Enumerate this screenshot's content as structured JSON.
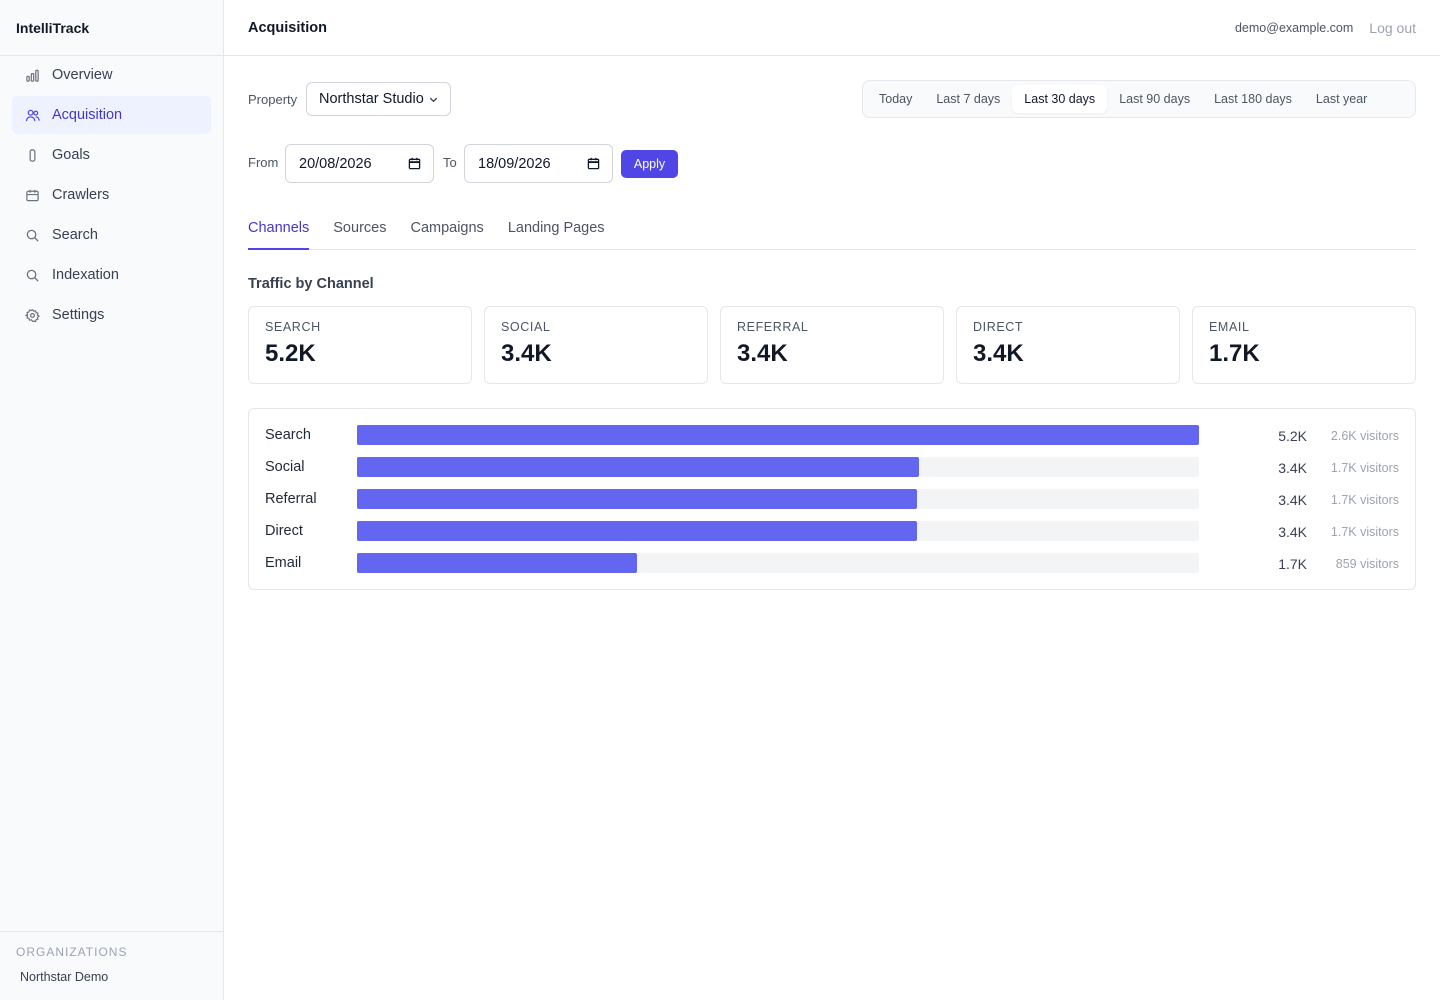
{
  "app": {
    "name": "IntelliTrack"
  },
  "sidebar": {
    "items": [
      {
        "label": "Overview",
        "icon": "bar-chart-icon"
      },
      {
        "label": "Acquisition",
        "icon": "users-icon",
        "active": true
      },
      {
        "label": "Goals",
        "icon": "goal-icon"
      },
      {
        "label": "Crawlers",
        "icon": "calendar-icon"
      },
      {
        "label": "Search",
        "icon": "search-icon"
      },
      {
        "label": "Indexation",
        "icon": "search-icon"
      },
      {
        "label": "Settings",
        "icon": "gear-icon"
      }
    ],
    "org_label": "ORGANIZATIONS",
    "org_name": "Northstar Demo"
  },
  "header": {
    "title": "Acquisition",
    "user_email": "demo@example.com",
    "logout_label": "Log out"
  },
  "filters": {
    "property_label": "Property",
    "property_value": "Northstar Studio",
    "ranges": [
      "Today",
      "Last 7 days",
      "Last 30 days",
      "Last 90 days",
      "Last 180 days",
      "Last year"
    ],
    "active_range": "Last 30 days",
    "from_label": "From",
    "from_value": "20/08/2026",
    "to_label": "To",
    "to_value": "18/09/2026",
    "apply_label": "Apply"
  },
  "tabs": [
    {
      "label": "Channels",
      "active": true
    },
    {
      "label": "Sources"
    },
    {
      "label": "Campaigns"
    },
    {
      "label": "Landing Pages"
    }
  ],
  "section_title": "Traffic by Channel",
  "cards": [
    {
      "label": "SEARCH",
      "value": "5.2K"
    },
    {
      "label": "SOCIAL",
      "value": "3.4K"
    },
    {
      "label": "REFERRAL",
      "value": "3.4K"
    },
    {
      "label": "DIRECT",
      "value": "3.4K"
    },
    {
      "label": "EMAIL",
      "value": "1.7K"
    }
  ],
  "channels": [
    {
      "label": "Search",
      "value": "5.2K",
      "visitors": "2.6K visitors",
      "fraction": 1.0
    },
    {
      "label": "Social",
      "value": "3.4K",
      "visitors": "1.7K visitors",
      "fraction": 0.667
    },
    {
      "label": "Referral",
      "value": "3.4K",
      "visitors": "1.7K visitors",
      "fraction": 0.665
    },
    {
      "label": "Direct",
      "value": "3.4K",
      "visitors": "1.7K visitors",
      "fraction": 0.665
    },
    {
      "label": "Email",
      "value": "1.7K",
      "visitors": "859 visitors",
      "fraction": 0.333
    }
  ],
  "colors": {
    "accent": "#4f46e5",
    "bar": "#6366f1",
    "track": "#f3f4f6",
    "active_nav_bg": "#eef2ff"
  }
}
